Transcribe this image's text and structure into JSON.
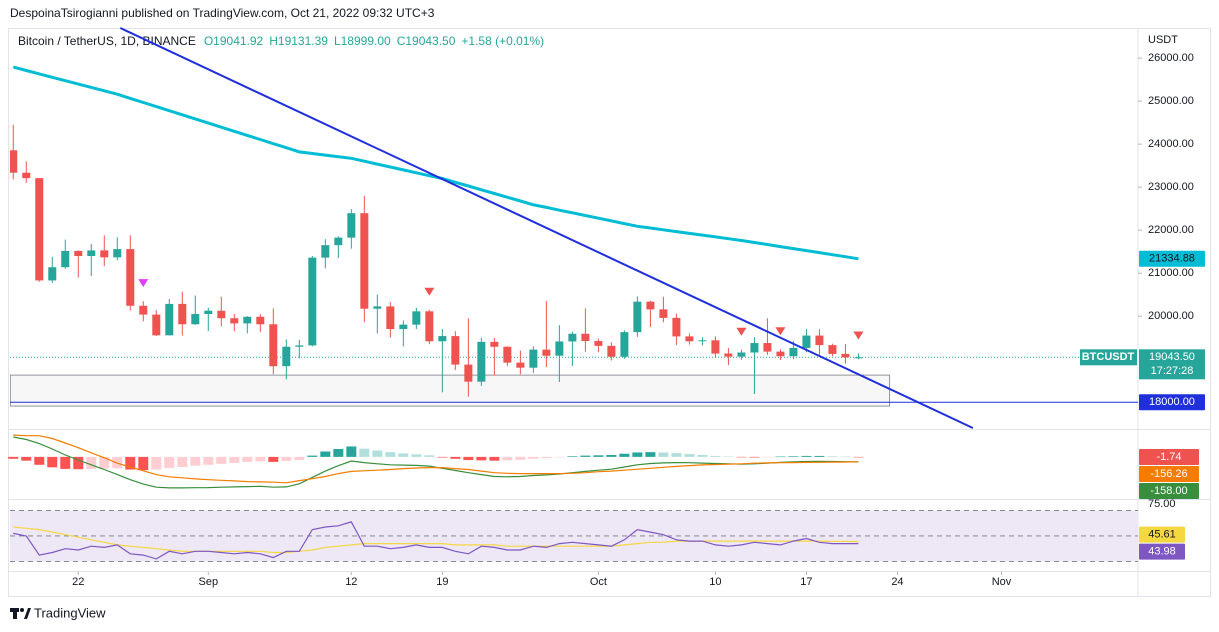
{
  "header": {
    "text": "DespoinaTsirogianni published on TradingView.com, Oct 21, 2022 09:32 UTC+3"
  },
  "footer": {
    "brand": "TradingView"
  },
  "chart_data": [
    {
      "type": "candlestick",
      "title": "Bitcoin / TetherUS, 1D, BINANCE",
      "legend_values": [
        "O19041.92",
        "H19131.39",
        "L18999.00",
        "C19043.50",
        "+1.58 (+0.01%)"
      ],
      "currency": "USDT",
      "up_color": "#26a69a",
      "down_color": "#ef5350",
      "open": [
        23857,
        23335,
        23210,
        20831,
        21138,
        21517,
        21399,
        21529,
        21368,
        21560,
        20241,
        20037,
        19555,
        20285,
        19812,
        20050,
        20127,
        19952,
        19832,
        19986,
        19812,
        18837,
        19290,
        19320,
        21361,
        21651,
        21826,
        22395,
        20173,
        20227,
        19701,
        19803,
        20113,
        19416,
        19537,
        18874,
        18477,
        19402,
        19289,
        18920,
        18802,
        19222,
        19080,
        19412,
        19591,
        19422,
        19310,
        19056,
        19629,
        20337,
        20158,
        19960,
        19530,
        19417,
        19439,
        19131,
        19060,
        19155,
        19375,
        19176,
        19069,
        19262,
        19549,
        19327,
        19123,
        19041.92
      ],
      "high": [
        24450,
        23600,
        23200,
        21380,
        21780,
        21530,
        21680,
        21880,
        21830,
        21880,
        20350,
        20140,
        20400,
        20570,
        20480,
        20200,
        20450,
        20050,
        20000,
        20050,
        20180,
        19460,
        19450,
        21400,
        21790,
        21860,
        22490,
        22800,
        20500,
        20330,
        19900,
        20200,
        20150,
        19700,
        19650,
        19950,
        19500,
        19500,
        19300,
        19200,
        19300,
        20350,
        19790,
        19640,
        20180,
        19480,
        19390,
        19670,
        20460,
        20360,
        20450,
        20060,
        19600,
        19510,
        19530,
        19260,
        19220,
        19510,
        19950,
        19230,
        19420,
        19700,
        19700,
        19360,
        19350,
        19131.39
      ],
      "low": [
        23180,
        23100,
        20800,
        20770,
        21100,
        20900,
        20930,
        21160,
        21300,
        20130,
        19880,
        19540,
        19550,
        19550,
        19800,
        19650,
        19760,
        19650,
        19600,
        19630,
        18650,
        18530,
        19020,
        19300,
        21110,
        21350,
        21570,
        19860,
        19600,
        19500,
        19300,
        19700,
        19350,
        18230,
        18750,
        18130,
        18380,
        18620,
        18840,
        18650,
        18680,
        18820,
        18470,
        18840,
        19170,
        19160,
        18970,
        19010,
        19520,
        19750,
        19860,
        19330,
        19340,
        19320,
        19030,
        18860,
        18990,
        18190,
        19100,
        18980,
        19000,
        19160,
        19100,
        19070,
        18900,
        18999
      ],
      "close": [
        23335,
        23210,
        20831,
        21138,
        21517,
        21399,
        21529,
        21368,
        21560,
        20241,
        20037,
        19555,
        20285,
        19812,
        20050,
        20127,
        19952,
        19832,
        19986,
        19812,
        18837,
        19290,
        19320,
        21361,
        21651,
        21826,
        22395,
        20173,
        20227,
        19701,
        19803,
        20113,
        19416,
        19537,
        18874,
        18477,
        19402,
        19289,
        18920,
        18802,
        19222,
        19080,
        19412,
        19591,
        19422,
        19310,
        19056,
        19629,
        20337,
        20158,
        19960,
        19530,
        19417,
        19439,
        19131,
        19060,
        19155,
        19375,
        19176,
        19069,
        19262,
        19549,
        19327,
        19123,
        19041.92,
        19043.5
      ],
      "last_price": {
        "ticker": "BTCUSDT",
        "label": "19043.50",
        "countdown": "17:27:28",
        "color": "#26a69a"
      },
      "ma": {
        "color": "#00bcd4",
        "label": "21334.88",
        "values": [
          25790,
          25711,
          25633,
          25554,
          25475,
          25396,
          25318,
          25239,
          25160,
          25064,
          24969,
          24873,
          24777,
          24681,
          24586,
          24490,
          24394,
          24299,
          24203,
          24107,
          24011,
          23916,
          23820,
          23783,
          23745,
          23708,
          23670,
          23603,
          23536,
          23469,
          23401,
          23334,
          23267,
          23200,
          23113,
          23026,
          22939,
          22851,
          22764,
          22677,
          22590,
          22528,
          22465,
          22403,
          22340,
          22278,
          22215,
          22153,
          22090,
          22049,
          22008,
          21966,
          21925,
          21884,
          21843,
          21801,
          21760,
          21713,
          21666,
          21618,
          21571,
          21524,
          21477,
          21429,
          21382,
          21334.88
        ]
      },
      "trend_line": {
        "x": [
          8.23,
          73.8
        ],
        "y": [
          26700,
          17400
        ],
        "color": "#1f2fdb"
      },
      "level": {
        "value": 18000,
        "label": "18000.00",
        "color": "#1f2fdb"
      },
      "box": {
        "x": [
          -0.23,
          67.4
        ],
        "y": [
          18630,
          17910
        ]
      },
      "markers": [
        {
          "index": 10,
          "color": "#e040fb"
        },
        {
          "index": 32,
          "color": "#ef5350"
        },
        {
          "index": 56,
          "color": "#ef5350"
        },
        {
          "index": 59,
          "color": "#ef5350"
        },
        {
          "index": 65,
          "color": "#ef5350"
        }
      ],
      "xlim": [
        -0.25,
        86.5
      ],
      "xticks": [
        {
          "value": 5,
          "label": "22"
        },
        {
          "value": 15,
          "label": "Sep"
        },
        {
          "value": 26,
          "label": "12"
        },
        {
          "value": 33,
          "label": "19"
        },
        {
          "value": 45,
          "label": "Oct"
        },
        {
          "value": 54,
          "label": "10"
        },
        {
          "value": 61,
          "label": "17"
        },
        {
          "value": 68,
          "label": "24"
        },
        {
          "value": 76,
          "label": "Nov"
        }
      ],
      "ylim": [
        17400,
        26700
      ],
      "yticks": [
        {
          "value": 20000,
          "label": "20000.00"
        },
        {
          "value": 21000,
          "label": "21000.00"
        },
        {
          "value": 22000,
          "label": "22000.00"
        },
        {
          "value": 23000,
          "label": "23000.00"
        },
        {
          "value": 24000,
          "label": "24000.00"
        },
        {
          "value": 25000,
          "label": "25000.00"
        },
        {
          "value": 26000,
          "label": "26000.00"
        }
      ],
      "grid": false
    },
    {
      "type": "macd",
      "ylim": [
        -1300,
        850
      ],
      "histogram": {
        "colors": [
          "#26a69a",
          "#b2dfdb",
          "#ff5252",
          "#ffcdd2"
        ],
        "label_color": "#ef5350",
        "label": "-1.74",
        "values": [
          -60,
          -120,
          -250,
          -330,
          -380,
          -390,
          -380,
          -370,
          -360,
          -400,
          -420,
          -400,
          -350,
          -320,
          -280,
          -250,
          -220,
          -190,
          -160,
          -140,
          -160,
          -130,
          -100,
          40,
          170,
          250,
          330,
          260,
          200,
          150,
          110,
          80,
          50,
          -20,
          -60,
          -100,
          -110,
          -120,
          -110,
          -90,
          -60,
          -40,
          -10,
          20,
          40,
          50,
          60,
          100,
          140,
          150,
          140,
          120,
          90,
          60,
          30,
          10,
          -10,
          -20,
          -10,
          10,
          20,
          30,
          30,
          20,
          10,
          -1.74
        ]
      },
      "series": [
        {
          "color": "#388e3c",
          "label": "-158.00",
          "values": [
            630,
            550,
            420,
            250,
            60,
            -100,
            -250,
            -400,
            -560,
            -720,
            -860,
            -960,
            -980,
            -980,
            -975,
            -970,
            -960,
            -950,
            -940,
            -930,
            -960,
            -950,
            -850,
            -650,
            -450,
            -280,
            -130,
            -180,
            -220,
            -250,
            -260,
            -270,
            -290,
            -360,
            -430,
            -500,
            -560,
            -620,
            -630,
            -620,
            -590,
            -570,
            -540,
            -500,
            -460,
            -420,
            -390,
            -320,
            -250,
            -210,
            -190,
            -180,
            -185,
            -195,
            -210,
            -220,
            -230,
            -220,
            -200,
            -175,
            -160,
            -145,
            -140,
            -145,
            -152,
            -158
          ]
        },
        {
          "color": "#f57c00",
          "label": "-156.26",
          "values": [
            690,
            670,
            670,
            580,
            440,
            290,
            130,
            -30,
            -200,
            -320,
            -440,
            -560,
            -630,
            -660,
            -695,
            -720,
            -740,
            -760,
            -780,
            -790,
            -800,
            -820,
            -750,
            -690,
            -620,
            -530,
            -460,
            -440,
            -420,
            -400,
            -370,
            -350,
            -340,
            -340,
            -370,
            -400,
            -450,
            -500,
            -520,
            -530,
            -530,
            -530,
            -530,
            -520,
            -500,
            -470,
            -450,
            -420,
            -390,
            -360,
            -330,
            -300,
            -275,
            -255,
            -240,
            -230,
            -220,
            -200,
            -190,
            -185,
            -180,
            -175,
            -170,
            -165,
            -162,
            -156.26
          ]
        }
      ]
    },
    {
      "type": "rsi",
      "ylim": [
        23.3,
        78.2
      ],
      "bands": [
        30,
        50,
        70
      ],
      "band_fill": "#ede7f6",
      "yticks": [
        {
          "value": 75,
          "label": "75.00"
        }
      ],
      "series": [
        {
          "color": "#f5d742",
          "label": "45.61",
          "values": [
            57,
            56,
            55,
            53,
            51,
            49,
            47,
            45,
            43,
            42,
            41,
            40,
            39,
            38,
            38,
            38,
            38,
            38,
            38,
            38,
            37,
            37,
            38,
            39,
            41,
            42,
            43,
            44,
            44,
            44,
            44,
            44,
            44,
            44,
            43,
            43,
            43,
            43,
            42,
            42,
            42,
            42,
            42,
            42,
            42,
            42,
            42,
            43,
            44,
            45,
            45,
            46,
            46,
            46,
            46,
            46,
            46,
            46,
            46,
            46,
            46,
            46,
            46,
            45.8,
            45.7,
            45.61
          ]
        },
        {
          "color": "#7e57c2",
          "label": "43.98",
          "values": [
            52,
            50,
            35,
            37,
            40,
            39,
            42,
            41,
            43,
            36,
            35,
            32,
            38,
            36,
            38,
            38,
            37,
            36,
            37,
            36,
            33,
            38,
            38,
            55,
            57,
            58,
            61,
            42,
            42,
            40,
            41,
            43,
            41,
            41,
            38,
            36,
            42,
            41,
            39,
            39,
            42,
            41,
            44,
            45,
            44,
            43,
            42,
            47,
            55,
            53,
            51,
            47,
            46,
            46,
            43,
            42,
            43,
            45,
            44,
            43,
            46,
            48,
            45,
            44,
            44,
            43.98
          ]
        }
      ]
    }
  ]
}
